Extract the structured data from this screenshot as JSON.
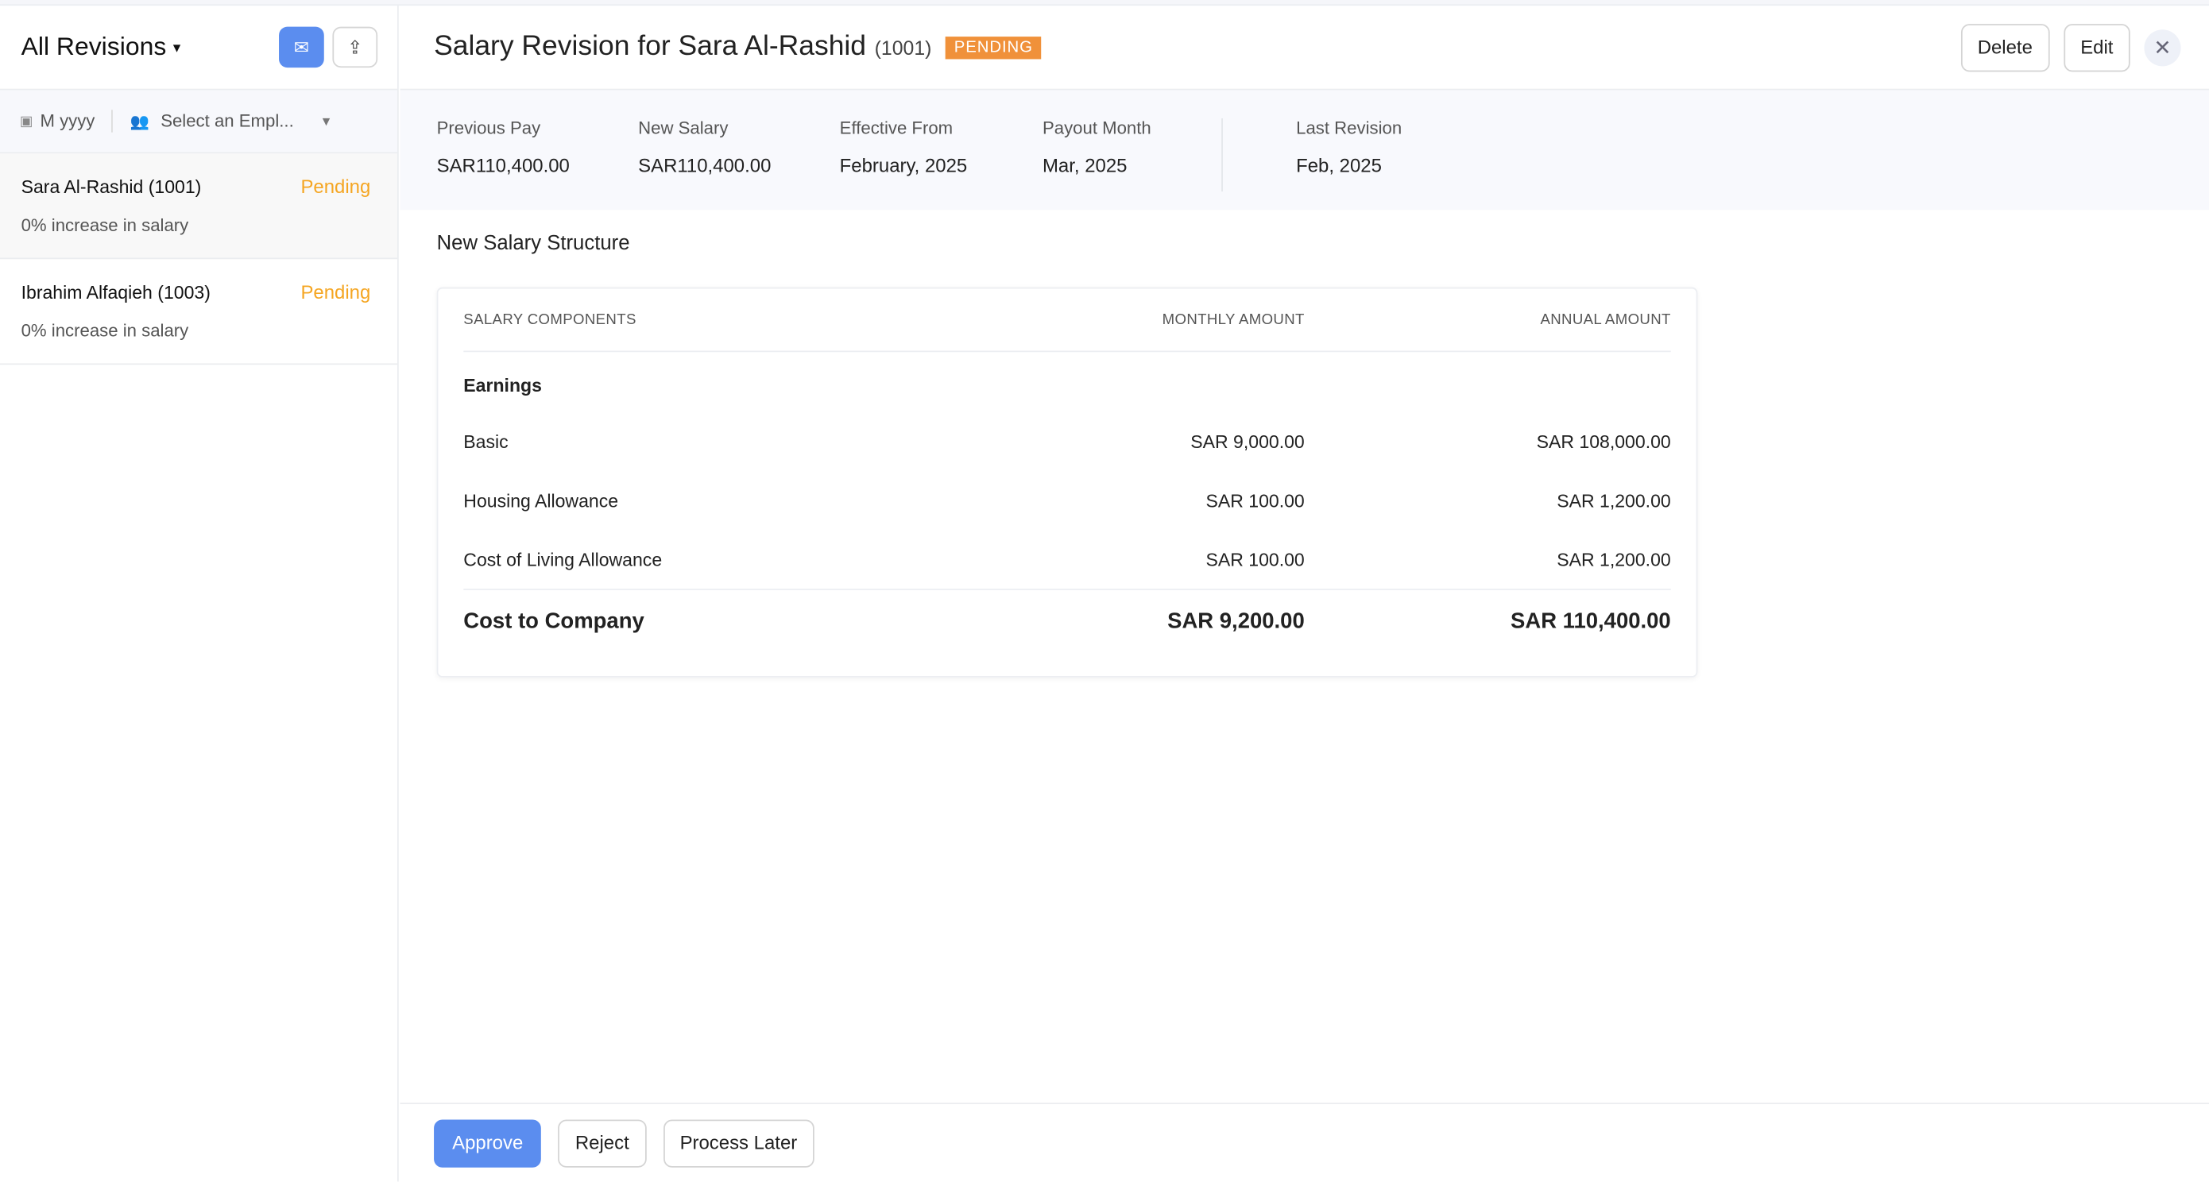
{
  "sidebar": {
    "title": "All Revisions",
    "filters": {
      "month_placeholder": "M yyyy",
      "employee_placeholder": "Select an Empl..."
    },
    "items": [
      {
        "name": "Sara Al-Rashid (1001)",
        "status": "Pending",
        "subtitle": "0% increase in salary"
      },
      {
        "name": "Ibrahim Alfaqieh (1003)",
        "status": "Pending",
        "subtitle": "0% increase in salary"
      }
    ]
  },
  "header": {
    "title": "Salary Revision for Sara Al-Rashid",
    "employee_id": "(1001)",
    "badge": "PENDING",
    "delete_label": "Delete",
    "edit_label": "Edit"
  },
  "summary": [
    {
      "label": "Previous Pay",
      "value": "SAR110,400.00"
    },
    {
      "label": "New Salary",
      "value": "SAR110,400.00"
    },
    {
      "label": "Effective From",
      "value": "February, 2025"
    },
    {
      "label": "Payout Month",
      "value": "Mar, 2025"
    },
    {
      "label": "Last Revision",
      "value": "Feb, 2025"
    }
  ],
  "structure": {
    "title": "New Salary Structure",
    "columns": [
      "SALARY COMPONENTS",
      "MONTHLY AMOUNT",
      "ANNUAL AMOUNT"
    ],
    "group": "Earnings",
    "rows": [
      {
        "name": "Basic",
        "monthly": "SAR 9,000.00",
        "annual": "SAR 108,000.00"
      },
      {
        "name": "Housing Allowance",
        "monthly": "SAR 100.00",
        "annual": "SAR 1,200.00"
      },
      {
        "name": "Cost of Living Allowance",
        "monthly": "SAR 100.00",
        "annual": "SAR 1,200.00"
      }
    ],
    "total": {
      "name": "Cost to Company",
      "monthly": "SAR 9,200.00",
      "annual": "SAR 110,400.00"
    }
  },
  "footer": {
    "approve": "Approve",
    "reject": "Reject",
    "later": "Process Later"
  },
  "colors": {
    "accent": "#5b8def",
    "pending": "#f5a623",
    "badge": "#f0913a"
  }
}
